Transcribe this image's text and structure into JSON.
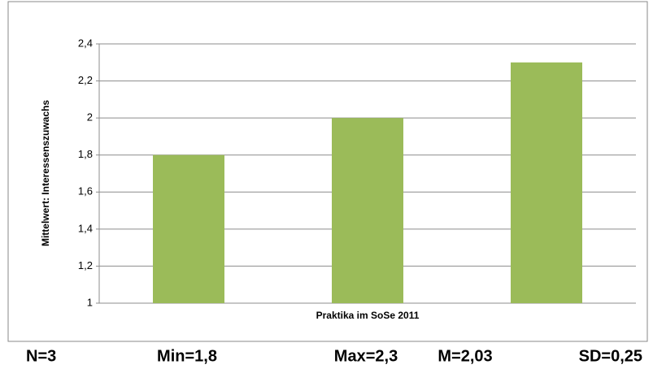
{
  "chart_data": {
    "type": "bar",
    "x_label": "Praktika im SoSe 2011",
    "y_label": "Mittelwert: Interessenszuwachs",
    "categories": [
      null,
      null,
      null
    ],
    "values": [
      1.8,
      2.0,
      2.3
    ],
    "color": "#9bbb59",
    "ylim": [
      1,
      2.4
    ],
    "yticks": [
      1,
      {
        "value": 1.2,
        "label": "1,2"
      },
      {
        "value": 1.4,
        "label": "1,4"
      },
      {
        "value": 1.6,
        "label": "1,6"
      },
      {
        "value": 1.8,
        "label": "1,8"
      },
      2,
      {
        "value": 2.2,
        "label": "2,2"
      },
      {
        "value": 2.4,
        "label": "2,4"
      }
    ],
    "grid": true
  },
  "statistics": [
    "N=3",
    "Min=1,8",
    "Max=2,3",
    "M=2,03",
    "SD=0,25"
  ]
}
